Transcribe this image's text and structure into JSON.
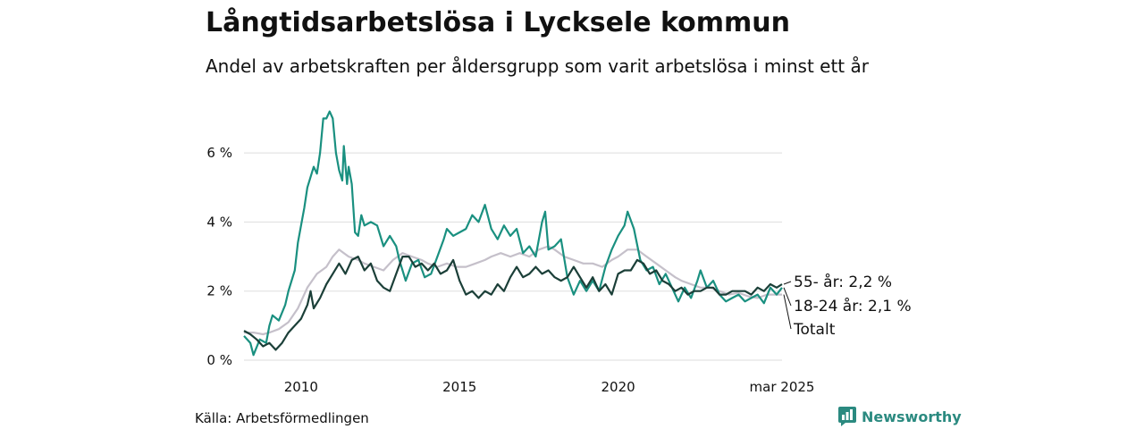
{
  "title": "Långtidsarbetslösa i Lycksele kommun",
  "subtitle": "Andel av arbetskraften per åldersgrupp som varit arbetslösa i minst ett år",
  "source": "Källa: Arbetsförmedlingen",
  "brand": {
    "name": "Newsworthy",
    "icon": "newsworthy-logo-icon",
    "color": "#2b8a80"
  },
  "chart_data": {
    "type": "line",
    "title": "Långtidsarbetslösa i Lycksele kommun",
    "subtitle": "Andel av arbetskraften per åldersgrupp som varit arbetslösa i minst ett år",
    "xlabel": "",
    "ylabel": "",
    "xlim": [
      2008.2,
      2025.17
    ],
    "ylim": [
      0,
      7.4
    ],
    "grid": true,
    "legend": "end labels right",
    "x_ticks": [
      {
        "value": 2010,
        "label": "2010"
      },
      {
        "value": 2015,
        "label": "2015"
      },
      {
        "value": 2020,
        "label": "2020"
      },
      {
        "value": 2025.17,
        "label": "mar 2025"
      }
    ],
    "y_ticks": [
      {
        "value": 0,
        "label": "0 %"
      },
      {
        "value": 2,
        "label": "2 %"
      },
      {
        "value": 4,
        "label": "4 %"
      },
      {
        "value": 6,
        "label": "6 %"
      }
    ],
    "series": [
      {
        "name": "18-24 år",
        "label": "18-24 år: 2,1 %",
        "color": "#1a9080",
        "points": [
          [
            2008.2,
            0.7
          ],
          [
            2008.4,
            0.5
          ],
          [
            2008.5,
            0.15
          ],
          [
            2008.7,
            0.6
          ],
          [
            2008.9,
            0.5
          ],
          [
            2009.0,
            1.0
          ],
          [
            2009.1,
            1.3
          ],
          [
            2009.3,
            1.15
          ],
          [
            2009.5,
            1.6
          ],
          [
            2009.6,
            2.0
          ],
          [
            2009.8,
            2.6
          ],
          [
            2009.9,
            3.4
          ],
          [
            2010.1,
            4.4
          ],
          [
            2010.2,
            5.0
          ],
          [
            2010.4,
            5.6
          ],
          [
            2010.5,
            5.4
          ],
          [
            2010.6,
            6.0
          ],
          [
            2010.7,
            7.0
          ],
          [
            2010.8,
            7.0
          ],
          [
            2010.9,
            7.2
          ],
          [
            2011.0,
            7.0
          ],
          [
            2011.1,
            6.0
          ],
          [
            2011.2,
            5.5
          ],
          [
            2011.3,
            5.2
          ],
          [
            2011.35,
            6.2
          ],
          [
            2011.45,
            5.1
          ],
          [
            2011.5,
            5.6
          ],
          [
            2011.6,
            5.1
          ],
          [
            2011.7,
            3.7
          ],
          [
            2011.8,
            3.6
          ],
          [
            2011.9,
            4.2
          ],
          [
            2012.0,
            3.9
          ],
          [
            2012.2,
            4.0
          ],
          [
            2012.4,
            3.9
          ],
          [
            2012.6,
            3.3
          ],
          [
            2012.8,
            3.6
          ],
          [
            2013.0,
            3.3
          ],
          [
            2013.1,
            2.9
          ],
          [
            2013.2,
            2.6
          ],
          [
            2013.3,
            2.3
          ],
          [
            2013.5,
            2.8
          ],
          [
            2013.7,
            2.9
          ],
          [
            2013.9,
            2.4
          ],
          [
            2014.1,
            2.5
          ],
          [
            2014.3,
            3.0
          ],
          [
            2014.5,
            3.5
          ],
          [
            2014.6,
            3.8
          ],
          [
            2014.8,
            3.6
          ],
          [
            2015.0,
            3.7
          ],
          [
            2015.2,
            3.8
          ],
          [
            2015.4,
            4.2
          ],
          [
            2015.6,
            4.0
          ],
          [
            2015.8,
            4.5
          ],
          [
            2016.0,
            3.8
          ],
          [
            2016.2,
            3.5
          ],
          [
            2016.4,
            3.9
          ],
          [
            2016.6,
            3.6
          ],
          [
            2016.8,
            3.8
          ],
          [
            2017.0,
            3.1
          ],
          [
            2017.2,
            3.3
          ],
          [
            2017.4,
            3.0
          ],
          [
            2017.6,
            4.0
          ],
          [
            2017.7,
            4.3
          ],
          [
            2017.8,
            3.2
          ],
          [
            2018.0,
            3.3
          ],
          [
            2018.2,
            3.5
          ],
          [
            2018.4,
            2.4
          ],
          [
            2018.6,
            1.9
          ],
          [
            2018.8,
            2.3
          ],
          [
            2019.0,
            2.0
          ],
          [
            2019.2,
            2.3
          ],
          [
            2019.4,
            2.0
          ],
          [
            2019.6,
            2.7
          ],
          [
            2019.8,
            3.2
          ],
          [
            2020.0,
            3.6
          ],
          [
            2020.2,
            3.9
          ],
          [
            2020.3,
            4.3
          ],
          [
            2020.5,
            3.8
          ],
          [
            2020.7,
            2.9
          ],
          [
            2020.9,
            2.6
          ],
          [
            2021.1,
            2.7
          ],
          [
            2021.3,
            2.2
          ],
          [
            2021.5,
            2.5
          ],
          [
            2021.7,
            2.1
          ],
          [
            2021.9,
            1.7
          ],
          [
            2022.1,
            2.1
          ],
          [
            2022.3,
            1.8
          ],
          [
            2022.5,
            2.3
          ],
          [
            2022.6,
            2.6
          ],
          [
            2022.8,
            2.1
          ],
          [
            2023.0,
            2.3
          ],
          [
            2023.2,
            1.9
          ],
          [
            2023.4,
            1.7
          ],
          [
            2023.6,
            1.8
          ],
          [
            2023.8,
            1.9
          ],
          [
            2024.0,
            1.7
          ],
          [
            2024.2,
            1.8
          ],
          [
            2024.4,
            1.9
          ],
          [
            2024.6,
            1.65
          ],
          [
            2024.8,
            2.1
          ],
          [
            2025.0,
            1.9
          ],
          [
            2025.17,
            2.1
          ]
        ]
      },
      {
        "name": "55- år",
        "label": "55- år: 2,2 %",
        "color": "#1b3f38",
        "points": [
          [
            2008.2,
            0.85
          ],
          [
            2008.4,
            0.75
          ],
          [
            2008.6,
            0.6
          ],
          [
            2008.8,
            0.4
          ],
          [
            2009.0,
            0.5
          ],
          [
            2009.2,
            0.3
          ],
          [
            2009.4,
            0.5
          ],
          [
            2009.6,
            0.8
          ],
          [
            2009.8,
            1.0
          ],
          [
            2010.0,
            1.2
          ],
          [
            2010.2,
            1.6
          ],
          [
            2010.3,
            2.0
          ],
          [
            2010.4,
            1.5
          ],
          [
            2010.6,
            1.8
          ],
          [
            2010.8,
            2.2
          ],
          [
            2011.0,
            2.5
          ],
          [
            2011.2,
            2.8
          ],
          [
            2011.4,
            2.5
          ],
          [
            2011.6,
            2.9
          ],
          [
            2011.8,
            3.0
          ],
          [
            2012.0,
            2.6
          ],
          [
            2012.2,
            2.8
          ],
          [
            2012.4,
            2.3
          ],
          [
            2012.6,
            2.1
          ],
          [
            2012.8,
            2.0
          ],
          [
            2013.0,
            2.5
          ],
          [
            2013.2,
            3.0
          ],
          [
            2013.4,
            3.0
          ],
          [
            2013.6,
            2.7
          ],
          [
            2013.8,
            2.8
          ],
          [
            2014.0,
            2.6
          ],
          [
            2014.2,
            2.8
          ],
          [
            2014.4,
            2.5
          ],
          [
            2014.6,
            2.6
          ],
          [
            2014.8,
            2.9
          ],
          [
            2015.0,
            2.3
          ],
          [
            2015.2,
            1.9
          ],
          [
            2015.4,
            2.0
          ],
          [
            2015.6,
            1.8
          ],
          [
            2015.8,
            2.0
          ],
          [
            2016.0,
            1.9
          ],
          [
            2016.2,
            2.2
          ],
          [
            2016.4,
            2.0
          ],
          [
            2016.6,
            2.4
          ],
          [
            2016.8,
            2.7
          ],
          [
            2017.0,
            2.4
          ],
          [
            2017.2,
            2.5
          ],
          [
            2017.4,
            2.7
          ],
          [
            2017.6,
            2.5
          ],
          [
            2017.8,
            2.6
          ],
          [
            2018.0,
            2.4
          ],
          [
            2018.2,
            2.3
          ],
          [
            2018.4,
            2.4
          ],
          [
            2018.6,
            2.7
          ],
          [
            2018.8,
            2.4
          ],
          [
            2019.0,
            2.1
          ],
          [
            2019.2,
            2.4
          ],
          [
            2019.4,
            2.0
          ],
          [
            2019.6,
            2.2
          ],
          [
            2019.8,
            1.9
          ],
          [
            2020.0,
            2.5
          ],
          [
            2020.2,
            2.6
          ],
          [
            2020.4,
            2.6
          ],
          [
            2020.6,
            2.9
          ],
          [
            2020.8,
            2.8
          ],
          [
            2021.0,
            2.5
          ],
          [
            2021.2,
            2.6
          ],
          [
            2021.4,
            2.3
          ],
          [
            2021.6,
            2.2
          ],
          [
            2021.8,
            2.0
          ],
          [
            2022.0,
            2.1
          ],
          [
            2022.2,
            1.9
          ],
          [
            2022.4,
            2.0
          ],
          [
            2022.6,
            2.0
          ],
          [
            2022.8,
            2.1
          ],
          [
            2023.0,
            2.1
          ],
          [
            2023.2,
            1.9
          ],
          [
            2023.4,
            1.9
          ],
          [
            2023.6,
            2.0
          ],
          [
            2023.8,
            2.0
          ],
          [
            2024.0,
            2.0
          ],
          [
            2024.2,
            1.9
          ],
          [
            2024.4,
            2.1
          ],
          [
            2024.6,
            2.0
          ],
          [
            2024.8,
            2.2
          ],
          [
            2025.0,
            2.1
          ],
          [
            2025.17,
            2.2
          ]
        ]
      },
      {
        "name": "Totalt",
        "label": "Totalt",
        "color": "#c5c0ca",
        "points": [
          [
            2008.2,
            0.8
          ],
          [
            2008.5,
            0.8
          ],
          [
            2008.8,
            0.75
          ],
          [
            2009.0,
            0.8
          ],
          [
            2009.3,
            0.9
          ],
          [
            2009.6,
            1.1
          ],
          [
            2009.9,
            1.5
          ],
          [
            2010.2,
            2.1
          ],
          [
            2010.5,
            2.5
          ],
          [
            2010.8,
            2.7
          ],
          [
            2011.0,
            3.0
          ],
          [
            2011.2,
            3.2
          ],
          [
            2011.5,
            3.0
          ],
          [
            2011.8,
            2.9
          ],
          [
            2012.0,
            2.8
          ],
          [
            2012.3,
            2.7
          ],
          [
            2012.6,
            2.6
          ],
          [
            2012.9,
            2.9
          ],
          [
            2013.2,
            3.1
          ],
          [
            2013.5,
            3.0
          ],
          [
            2013.8,
            2.9
          ],
          [
            2014.0,
            2.8
          ],
          [
            2014.3,
            2.7
          ],
          [
            2014.6,
            2.8
          ],
          [
            2014.9,
            2.7
          ],
          [
            2015.2,
            2.7
          ],
          [
            2015.5,
            2.8
          ],
          [
            2015.8,
            2.9
          ],
          [
            2016.0,
            3.0
          ],
          [
            2016.3,
            3.1
          ],
          [
            2016.6,
            3.0
          ],
          [
            2016.9,
            3.1
          ],
          [
            2017.2,
            3.0
          ],
          [
            2017.5,
            3.2
          ],
          [
            2017.8,
            3.3
          ],
          [
            2018.0,
            3.2
          ],
          [
            2018.3,
            3.0
          ],
          [
            2018.6,
            2.9
          ],
          [
            2018.9,
            2.8
          ],
          [
            2019.2,
            2.8
          ],
          [
            2019.5,
            2.7
          ],
          [
            2019.8,
            2.9
          ],
          [
            2020.0,
            3.0
          ],
          [
            2020.3,
            3.2
          ],
          [
            2020.6,
            3.2
          ],
          [
            2020.9,
            3.0
          ],
          [
            2021.2,
            2.8
          ],
          [
            2021.5,
            2.6
          ],
          [
            2021.8,
            2.4
          ],
          [
            2022.0,
            2.3
          ],
          [
            2022.3,
            2.2
          ],
          [
            2022.6,
            2.1
          ],
          [
            2022.9,
            2.1
          ],
          [
            2023.2,
            2.0
          ],
          [
            2023.5,
            1.9
          ],
          [
            2023.8,
            1.95
          ],
          [
            2024.1,
            1.85
          ],
          [
            2024.4,
            1.8
          ],
          [
            2024.7,
            1.9
          ],
          [
            2025.0,
            1.9
          ],
          [
            2025.17,
            1.9
          ]
        ]
      }
    ]
  }
}
